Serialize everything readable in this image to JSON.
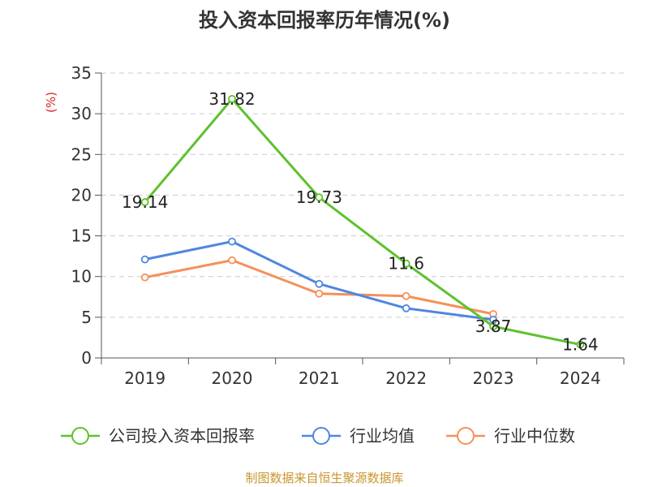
{
  "title": "投入资本回报率历年情况(%)",
  "source": "制图数据来自恒生聚源数据库",
  "chart_data": {
    "type": "line",
    "title": "投入资本回报率历年情况(%)",
    "ylabel": "(%)",
    "xlabel": "",
    "categories": [
      "2019",
      "2020",
      "2021",
      "2022",
      "2023",
      "2024"
    ],
    "ylim": [
      0,
      35
    ],
    "yticks": [
      0,
      5,
      10,
      15,
      20,
      25,
      30,
      35
    ],
    "grid": true,
    "legend_position": "bottom",
    "series": [
      {
        "name": "公司投入资本回报率",
        "color": "#5dc22c",
        "values": [
          19.14,
          31.82,
          19.73,
          11.6,
          3.87,
          1.64
        ],
        "labels": [
          "19.14",
          "31.82",
          "19.73",
          "11.6",
          "3.87",
          "1.64"
        ]
      },
      {
        "name": "行业均值",
        "color": "#4f86e0",
        "values": [
          12.1,
          14.3,
          9.1,
          6.1,
          4.7,
          null
        ]
      },
      {
        "name": "行业中位数",
        "color": "#f5905a",
        "values": [
          9.9,
          12.0,
          7.9,
          7.6,
          5.4,
          null
        ]
      }
    ]
  }
}
